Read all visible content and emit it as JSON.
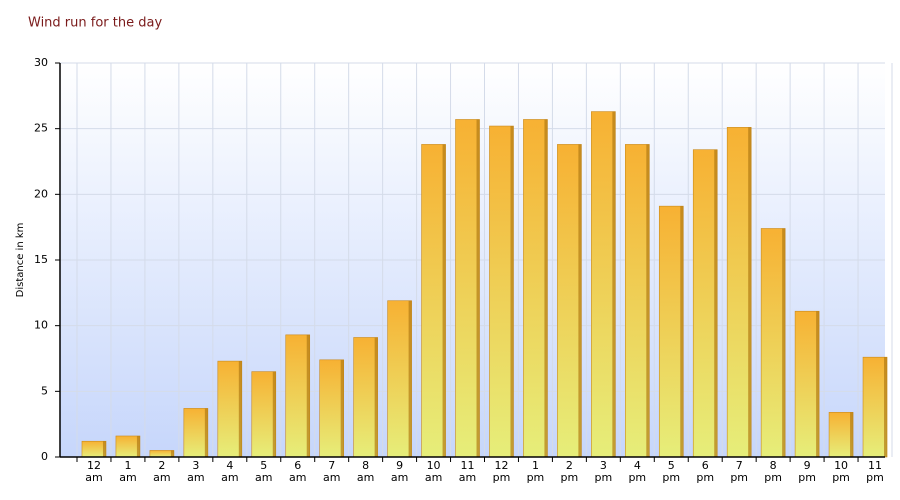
{
  "chart_data": {
    "type": "bar",
    "title": "Wind run for the day",
    "y_label": "Distance in km",
    "categories": [
      "12 am",
      "1 am",
      "2 am",
      "3 am",
      "4 am",
      "5 am",
      "6 am",
      "7 am",
      "8 am",
      "9 am",
      "10 am",
      "11 am",
      "12 pm",
      "1 pm",
      "2 pm",
      "3 pm",
      "4 pm",
      "5 pm",
      "6 pm",
      "7 pm",
      "8 pm",
      "9 pm",
      "10 pm",
      "11 pm"
    ],
    "values": [
      1.2,
      1.6,
      0.5,
      3.7,
      7.3,
      6.5,
      9.3,
      7.4,
      9.1,
      11.9,
      23.8,
      25.7,
      25.2,
      25.7,
      23.8,
      26.3,
      23.8,
      19.1,
      23.4,
      25.1,
      17.4,
      11.1,
      3.4,
      7.6
    ],
    "color": "#f5b231",
    "ylim": [
      0,
      30
    ],
    "yticks": [
      0,
      5,
      10,
      15,
      20,
      25,
      30
    ],
    "grid": true
  }
}
